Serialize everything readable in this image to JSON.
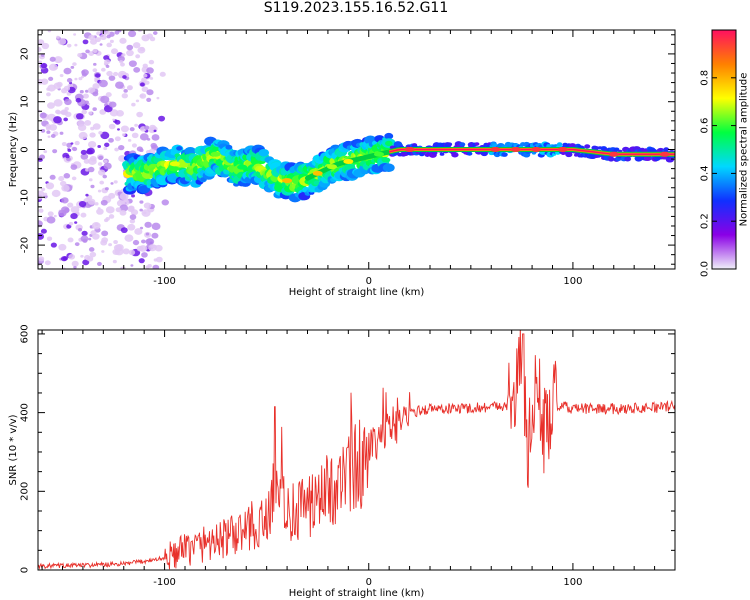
{
  "page_title": "S119.2023.155.16.52.G11",
  "colors": {
    "axes": "#000000",
    "snr_line": "#e8302a",
    "scatter_light": "#e2c8f5",
    "scatter_mid": "#b98aec",
    "scatter_dark": "#6a16e6"
  },
  "chart_data": [
    {
      "type": "heatmap",
      "title": "S119.2023.155.16.52.G11",
      "xlabel": "Height of straight line (km)",
      "ylabel": "Frequency (Hz)",
      "xlim": [
        -162,
        150
      ],
      "ylim": [
        -25,
        25
      ],
      "xticks": [
        -100,
        0,
        100
      ],
      "yticks": [
        -20,
        -10,
        0,
        10,
        20
      ],
      "grid": false,
      "colorbar": {
        "label": "Normalized spectral amplitude",
        "range": [
          0,
          1
        ],
        "ticks": [
          0.0,
          0.2,
          0.4,
          0.6,
          0.8
        ],
        "colormap": [
          "#f0f0f8",
          "#8a00e6",
          "#1030ff",
          "#00d8ff",
          "#00ff40",
          "#ffff00",
          "#ff8000",
          "#ff1060"
        ]
      },
      "ridge": {
        "x": [
          -110,
          -95,
          -85,
          -75,
          -65,
          -55,
          -45,
          -35,
          -25,
          -15,
          -5,
          5,
          15,
          40,
          60,
          70,
          85,
          100,
          120,
          150
        ],
        "freq": [
          -5,
          -3,
          -4,
          -1,
          -4,
          -3,
          -6,
          -7,
          -5,
          -3,
          -2,
          -1,
          0,
          0,
          0,
          0,
          0,
          0,
          -1,
          -1
        ]
      }
    },
    {
      "type": "line",
      "xlabel": "Height of straight line (km)",
      "ylabel": "SNR (10 * v/v)",
      "xlim": [
        -162,
        150
      ],
      "ylim": [
        0,
        610
      ],
      "xticks": [
        -100,
        0,
        100
      ],
      "yticks": [
        0,
        200,
        400,
        600
      ],
      "grid": false,
      "series": [
        {
          "x": [
            -162,
            -140,
            -120,
            -100,
            -90,
            -80,
            -70,
            -60,
            -50,
            -46,
            -40,
            -30,
            -20,
            -10,
            0,
            5,
            10,
            20,
            30,
            40,
            50,
            60,
            68,
            72,
            75,
            78,
            82,
            86,
            90,
            100,
            120,
            150
          ],
          "y": [
            10,
            12,
            15,
            30,
            50,
            70,
            80,
            100,
            120,
            250,
            140,
            160,
            200,
            240,
            300,
            320,
            360,
            400,
            410,
            410,
            412,
            415,
            420,
            450,
            560,
            300,
            480,
            350,
            420,
            410,
            410,
            415
          ]
        }
      ]
    }
  ]
}
